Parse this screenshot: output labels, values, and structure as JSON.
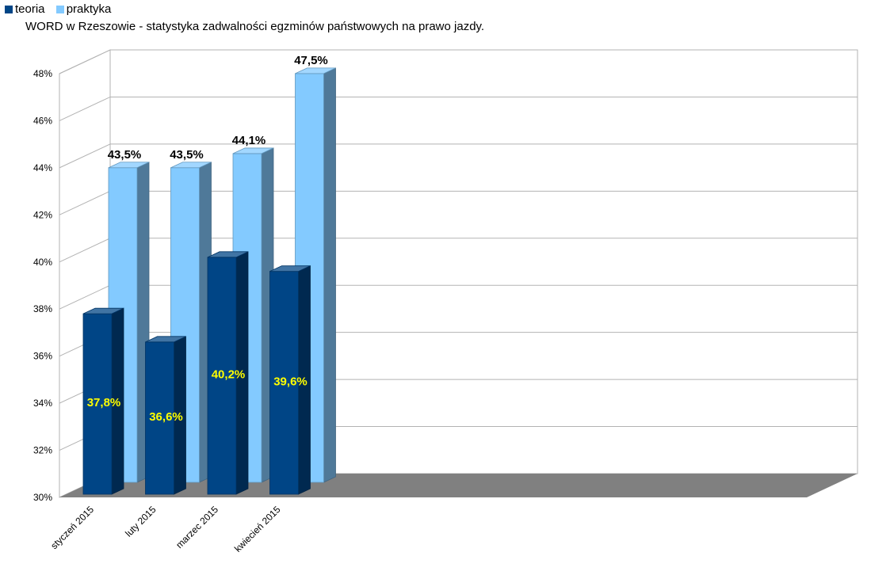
{
  "chart_data": {
    "type": "bar",
    "title": "WORD w Rzeszowie - statystyka zadwalności egzminów państwowych na prawo jazdy.",
    "categories": [
      "styczeń 2015",
      "luty 2015",
      "marzec 2015",
      "kwiecień 2015"
    ],
    "series": [
      {
        "name": "teoria",
        "values": [
          37.8,
          36.6,
          40.2,
          39.6
        ],
        "labels": [
          "37,8%",
          "36,6%",
          "40,2%",
          "39,6%"
        ],
        "color": "#004586"
      },
      {
        "name": "praktyka",
        "values": [
          43.5,
          43.5,
          44.1,
          47.5
        ],
        "labels": [
          "43,5%",
          "43,5%",
          "44,1%",
          "47,5%"
        ],
        "color": "#83caff"
      }
    ],
    "ylim": [
      30,
      48
    ],
    "yticks": [
      30,
      32,
      34,
      36,
      38,
      40,
      42,
      44,
      46,
      48
    ],
    "ytick_labels": [
      "30%",
      "32%",
      "34%",
      "36%",
      "38%",
      "40%",
      "42%",
      "44%",
      "46%",
      "48%"
    ],
    "xlabel": "",
    "ylabel": "",
    "grid": true,
    "legend_position": "top-left",
    "style": "3d",
    "colors": {
      "wall": "#ffffff",
      "gridline": "#b3b3b3",
      "floor": "#808080",
      "teoria_label": "#ffff00",
      "praktyka_label": "#000000"
    }
  }
}
